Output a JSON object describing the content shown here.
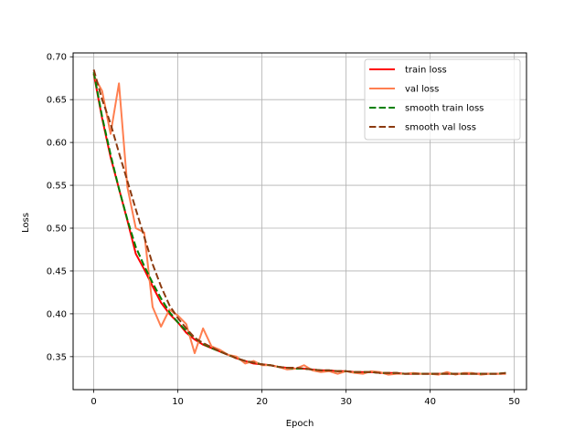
{
  "chart_data": {
    "type": "line",
    "title": "",
    "xlabel": "Epoch",
    "ylabel": "Loss",
    "xlim": [
      -2.45,
      51.45
    ],
    "ylim": [
      0.3115,
      0.7045
    ],
    "xticks": [
      0,
      10,
      20,
      30,
      40,
      50
    ],
    "yticks": [
      0.35,
      0.4,
      0.45,
      0.5,
      0.55,
      0.6,
      0.65,
      0.7
    ],
    "ytick_labels": [
      "0.35",
      "0.40",
      "0.45",
      "0.50",
      "0.55",
      "0.60",
      "0.65",
      "0.70"
    ],
    "grid": true,
    "legend_position": "top-right",
    "x": [
      0,
      1,
      2,
      3,
      4,
      5,
      6,
      7,
      8,
      9,
      10,
      11,
      12,
      13,
      14,
      15,
      16,
      17,
      18,
      19,
      20,
      21,
      22,
      23,
      24,
      25,
      26,
      27,
      28,
      29,
      30,
      31,
      32,
      33,
      34,
      35,
      36,
      37,
      38,
      39,
      40,
      41,
      42,
      43,
      44,
      45,
      46,
      47,
      48,
      49
    ],
    "series": [
      {
        "name": "train loss",
        "color": "#ff0000",
        "dash": "solid",
        "values": [
          0.68,
          0.628,
          0.583,
          0.546,
          0.509,
          0.47,
          0.452,
          0.432,
          0.413,
          0.4,
          0.39,
          0.378,
          0.37,
          0.364,
          0.36,
          0.356,
          0.352,
          0.348,
          0.345,
          0.342,
          0.341,
          0.34,
          0.338,
          0.337,
          0.336,
          0.336,
          0.335,
          0.334,
          0.334,
          0.333,
          0.333,
          0.332,
          0.332,
          0.332,
          0.331,
          0.331,
          0.331,
          0.33,
          0.33,
          0.33,
          0.33,
          0.33,
          0.33,
          0.33,
          0.33,
          0.33,
          0.33,
          0.33,
          0.33,
          0.33
        ]
      },
      {
        "name": "val loss",
        "color": "#ff7f50",
        "dash": "solid",
        "values": [
          0.678,
          0.66,
          0.61,
          0.669,
          0.548,
          0.5,
          0.495,
          0.408,
          0.385,
          0.405,
          0.398,
          0.388,
          0.354,
          0.383,
          0.362,
          0.358,
          0.352,
          0.35,
          0.342,
          0.345,
          0.34,
          0.34,
          0.338,
          0.335,
          0.336,
          0.34,
          0.334,
          0.332,
          0.333,
          0.33,
          0.333,
          0.331,
          0.33,
          0.333,
          0.332,
          0.329,
          0.33,
          0.33,
          0.331,
          0.33,
          0.33,
          0.329,
          0.332,
          0.329,
          0.331,
          0.331,
          0.329,
          0.33,
          0.33,
          0.33
        ]
      },
      {
        "name": "smooth train loss",
        "color": "#008000",
        "dash": "dashed",
        "values": [
          0.682,
          0.63,
          0.586,
          0.546,
          0.51,
          0.478,
          0.456,
          0.436,
          0.418,
          0.402,
          0.39,
          0.38,
          0.372,
          0.365,
          0.36,
          0.356,
          0.352,
          0.348,
          0.345,
          0.343,
          0.341,
          0.34,
          0.338,
          0.337,
          0.336,
          0.336,
          0.335,
          0.334,
          0.334,
          0.333,
          0.333,
          0.332,
          0.332,
          0.332,
          0.331,
          0.331,
          0.331,
          0.33,
          0.33,
          0.33,
          0.33,
          0.33,
          0.33,
          0.33,
          0.33,
          0.33,
          0.33,
          0.33,
          0.33,
          0.331
        ]
      },
      {
        "name": "smooth val loss",
        "color": "#8b3a0f",
        "dash": "dashed",
        "values": [
          0.685,
          0.65,
          0.622,
          0.588,
          0.555,
          0.522,
          0.49,
          0.458,
          0.432,
          0.41,
          0.395,
          0.383,
          0.372,
          0.366,
          0.361,
          0.356,
          0.352,
          0.348,
          0.345,
          0.343,
          0.341,
          0.34,
          0.338,
          0.337,
          0.337,
          0.336,
          0.335,
          0.334,
          0.334,
          0.333,
          0.333,
          0.332,
          0.332,
          0.332,
          0.331,
          0.331,
          0.331,
          0.33,
          0.33,
          0.33,
          0.33,
          0.33,
          0.33,
          0.33,
          0.33,
          0.33,
          0.33,
          0.33,
          0.33,
          0.331
        ]
      }
    ]
  }
}
